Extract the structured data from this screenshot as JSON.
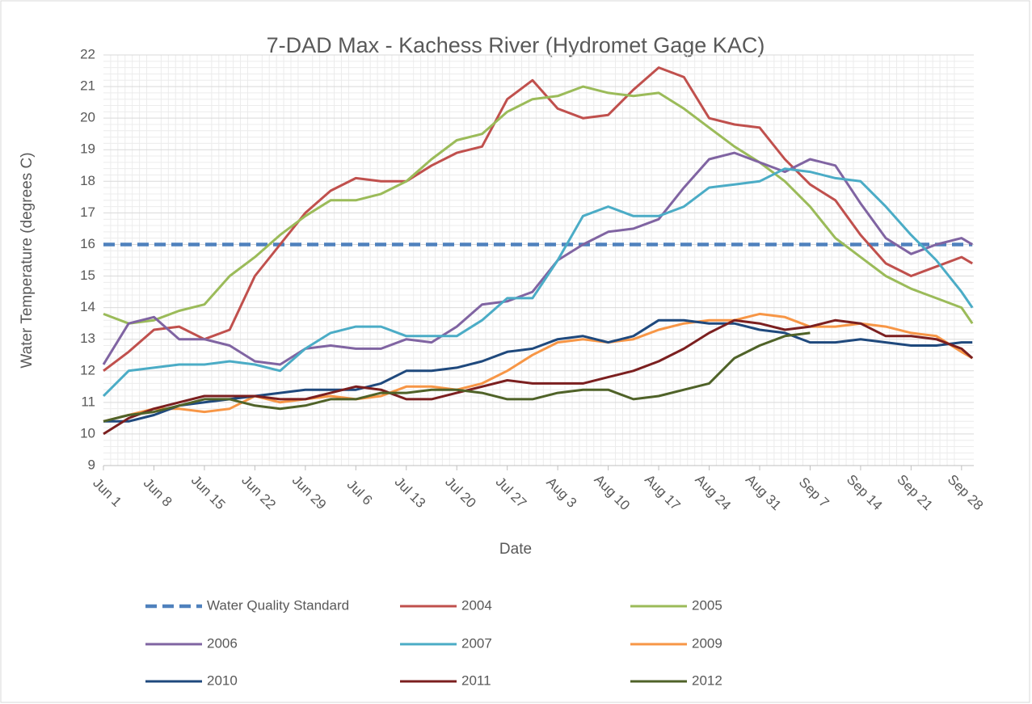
{
  "chart_data": {
    "type": "line",
    "title": "7-DAD Max - Kachess River (Hydromet Gage KAC)",
    "x_label": "Date",
    "y_label": "Water Temperature (degrees C)",
    "x": [
      0,
      3.5,
      7,
      10.5,
      14,
      17.5,
      21,
      24.5,
      28,
      31.5,
      35,
      38.5,
      42,
      45.5,
      49,
      52.5,
      56,
      59.5,
      63,
      66.5,
      70,
      73.5,
      77,
      80.5,
      84,
      87.5,
      91,
      94.5,
      98,
      101.5,
      105,
      108.5,
      112,
      115.5,
      119,
      120.5
    ],
    "xlim": [
      0,
      120.7
    ],
    "xticks": [
      {
        "value": 0,
        "label": "Jun 1"
      },
      {
        "value": 7,
        "label": "Jun 8"
      },
      {
        "value": 14,
        "label": "Jun 15"
      },
      {
        "value": 21,
        "label": "Jun 22"
      },
      {
        "value": 28,
        "label": "Jun 29"
      },
      {
        "value": 35,
        "label": "Jul 6"
      },
      {
        "value": 42,
        "label": "Jul 13"
      },
      {
        "value": 49,
        "label": "Jul 20"
      },
      {
        "value": 56,
        "label": "Jul 27"
      },
      {
        "value": 63,
        "label": "Aug 3"
      },
      {
        "value": 70,
        "label": "Aug 10"
      },
      {
        "value": 77,
        "label": "Aug 17"
      },
      {
        "value": 84,
        "label": "Aug 24"
      },
      {
        "value": 91,
        "label": "Aug 31"
      },
      {
        "value": 98,
        "label": "Sep 7"
      },
      {
        "value": 105,
        "label": "Sep 14"
      },
      {
        "value": 112,
        "label": "Sep 21"
      },
      {
        "value": 119,
        "label": "Sep 28"
      }
    ],
    "ylim": [
      9,
      22
    ],
    "yticks": [
      9,
      10,
      11,
      12,
      13,
      14,
      15,
      16,
      17,
      18,
      19,
      20,
      21,
      22
    ],
    "grid": true,
    "minor_grid": true,
    "legend": "bottom",
    "series": [
      {
        "name": "Water Quality Standard",
        "color": "#4f81bd",
        "dashed": true,
        "values": [
          16,
          16,
          16,
          16,
          16,
          16,
          16,
          16,
          16,
          16,
          16,
          16,
          16,
          16,
          16,
          16,
          16,
          16,
          16,
          16,
          16,
          16,
          16,
          16,
          16,
          16,
          16,
          16,
          16,
          16,
          16,
          16,
          16,
          16,
          16,
          16
        ]
      },
      {
        "name": "2004",
        "color": "#c0504d",
        "values": [
          12.0,
          12.6,
          13.3,
          13.4,
          13.0,
          13.3,
          15.0,
          16.0,
          17.0,
          17.7,
          18.1,
          18.0,
          18.0,
          18.5,
          18.9,
          19.1,
          20.6,
          21.2,
          20.3,
          20.0,
          20.1,
          20.9,
          21.6,
          21.3,
          20.0,
          19.8,
          19.7,
          18.7,
          17.9,
          17.4,
          16.3,
          15.4,
          15.0,
          15.3,
          15.6,
          15.4
        ]
      },
      {
        "name": "2005",
        "color": "#9bbb59",
        "values": [
          13.8,
          13.5,
          13.6,
          13.9,
          14.1,
          15.0,
          15.6,
          16.3,
          16.9,
          17.4,
          17.4,
          17.6,
          18.0,
          18.7,
          19.3,
          19.5,
          20.2,
          20.6,
          20.7,
          21.0,
          20.8,
          20.7,
          20.8,
          20.3,
          19.7,
          19.1,
          18.6,
          18.0,
          17.2,
          16.2,
          15.6,
          15.0,
          14.6,
          14.3,
          14.0,
          13.5
        ]
      },
      {
        "name": "2006",
        "color": "#8064a2",
        "values": [
          12.2,
          13.5,
          13.7,
          13.0,
          13.0,
          12.8,
          12.3,
          12.2,
          12.7,
          12.8,
          12.7,
          12.7,
          13.0,
          12.9,
          13.4,
          14.1,
          14.2,
          14.5,
          15.5,
          16.0,
          16.4,
          16.5,
          16.8,
          17.8,
          18.7,
          18.9,
          18.6,
          18.3,
          18.7,
          18.5,
          17.3,
          16.2,
          15.7,
          16.0,
          16.2,
          16.0
        ]
      },
      {
        "name": "2007",
        "color": "#4bacc6",
        "values": [
          11.2,
          12.0,
          12.1,
          12.2,
          12.2,
          12.3,
          12.2,
          12.0,
          12.7,
          13.2,
          13.4,
          13.4,
          13.1,
          13.1,
          13.1,
          13.6,
          14.3,
          14.3,
          15.5,
          16.9,
          17.2,
          16.9,
          16.9,
          17.2,
          17.8,
          17.9,
          18.0,
          18.4,
          18.3,
          18.1,
          18.0,
          17.2,
          16.3,
          15.5,
          14.5,
          14.0
        ]
      },
      {
        "name": "2009",
        "color": "#f79646",
        "values": [
          10.4,
          10.6,
          10.8,
          10.8,
          10.7,
          10.8,
          11.2,
          11.0,
          11.1,
          11.2,
          11.1,
          11.2,
          11.5,
          11.5,
          11.4,
          11.6,
          12.0,
          12.5,
          12.9,
          13.0,
          12.9,
          13.0,
          13.3,
          13.5,
          13.6,
          13.6,
          13.8,
          13.7,
          13.4,
          13.4,
          13.5,
          13.4,
          13.2,
          13.1,
          12.6,
          12.4
        ]
      },
      {
        "name": "2010",
        "color": "#1f497d",
        "values": [
          10.4,
          10.4,
          10.6,
          10.9,
          11.0,
          11.1,
          11.2,
          11.3,
          11.4,
          11.4,
          11.4,
          11.6,
          12.0,
          12.0,
          12.1,
          12.3,
          12.6,
          12.7,
          13.0,
          13.1,
          12.9,
          13.1,
          13.6,
          13.6,
          13.5,
          13.5,
          13.3,
          13.2,
          12.9,
          12.9,
          13.0,
          12.9,
          12.8,
          12.8,
          12.9,
          12.9
        ]
      },
      {
        "name": "2011",
        "color": "#7b1f1f",
        "values": [
          10.0,
          10.5,
          10.8,
          11.0,
          11.2,
          11.2,
          11.2,
          11.1,
          11.1,
          11.3,
          11.5,
          11.4,
          11.1,
          11.1,
          11.3,
          11.5,
          11.7,
          11.6,
          11.6,
          11.6,
          11.8,
          12.0,
          12.3,
          12.7,
          13.2,
          13.6,
          13.5,
          13.3,
          13.4,
          13.6,
          13.5,
          13.1,
          13.1,
          13.0,
          12.7,
          12.4
        ]
      },
      {
        "name": "2012",
        "color": "#4f6228",
        "values": [
          10.4,
          10.6,
          10.7,
          10.9,
          11.1,
          11.1,
          10.9,
          10.8,
          10.9,
          11.1,
          11.1,
          11.3,
          11.3,
          11.4,
          11.4,
          11.3,
          11.1,
          11.1,
          11.3,
          11.4,
          11.4,
          11.1,
          11.2,
          11.4,
          11.6,
          12.4,
          12.8,
          13.1,
          13.2,
          null,
          null,
          null,
          null,
          null,
          null,
          null
        ]
      }
    ]
  }
}
